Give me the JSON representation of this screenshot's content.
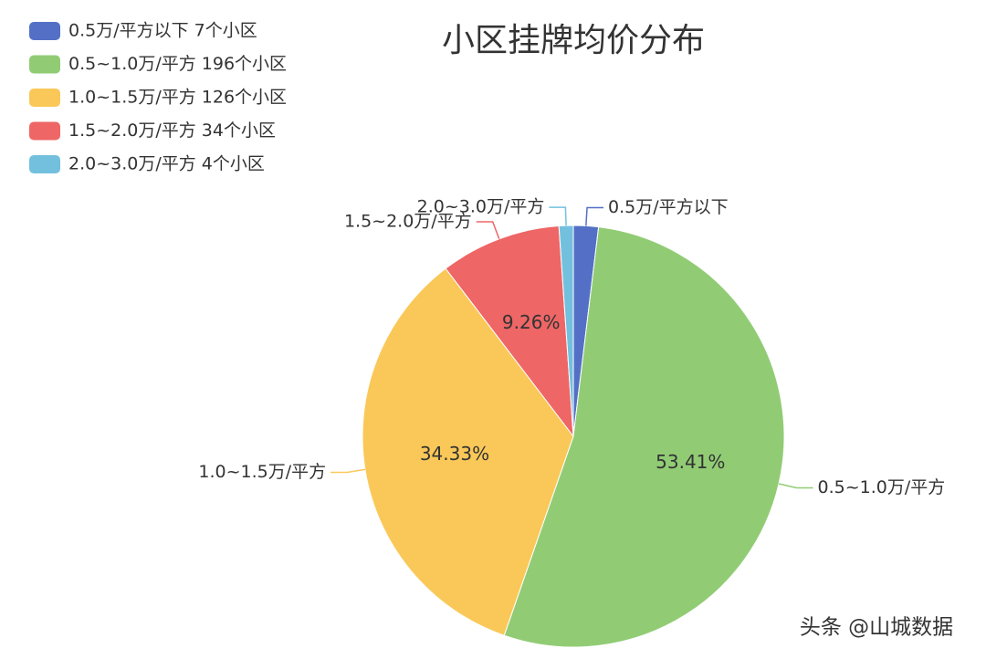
{
  "chart_data": {
    "type": "pie",
    "title": "小区挂牌均价分布",
    "legend": [
      "0.5万/平方以下 7个小区",
      "0.5~1.0万/平方 196个小区",
      "1.0~1.5万/平方 126个小区",
      "1.5~2.0万/平方 34个小区",
      "2.0~3.0万/平方 4个小区"
    ],
    "categories": [
      "0.5万/平方以下",
      "0.5~1.0万/平方",
      "1.0~1.5万/平方",
      "1.5~2.0万/平方",
      "2.0~3.0万/平方"
    ],
    "values": [
      1.91,
      53.41,
      34.33,
      9.26,
      1.09
    ],
    "value_labels": [
      null,
      "53.41%",
      "34.33%",
      "9.26%",
      null
    ],
    "colors": [
      "#5470c6",
      "#91cc75",
      "#fac858",
      "#ee6666",
      "#73c0de"
    ],
    "legend_position": "top-left"
  },
  "watermark": "头条 @山城数据"
}
